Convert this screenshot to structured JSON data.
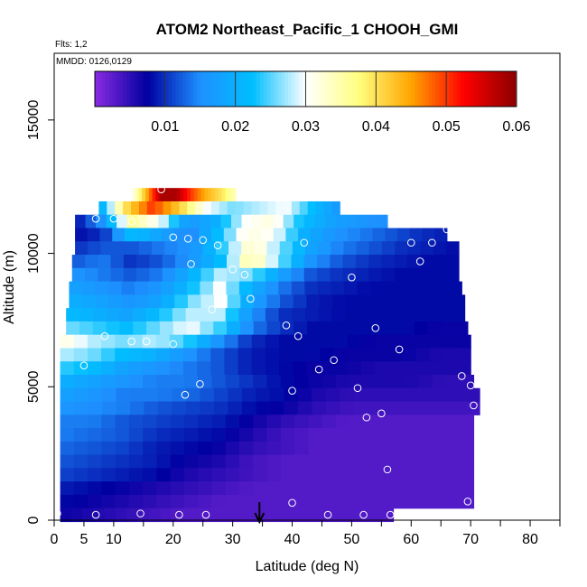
{
  "chart_data": {
    "type": "heatmap",
    "title": "ATOM2 Northeast_Pacific_1 CHOOH_GMI",
    "subtitle_flights": "Flts: 1,2",
    "subtitle_dates": "MMDD: 0126,0129",
    "xlabel": "Latitude (deg N)",
    "ylabel": "Altitude (m)",
    "xlim": [
      0,
      85
    ],
    "ylim": [
      0,
      17500
    ],
    "x_ticks": [
      0,
      5,
      10,
      20,
      30,
      40,
      50,
      60,
      70,
      80
    ],
    "x_tick_labels": [
      "0",
      "5",
      "10",
      "20",
      "30",
      "40",
      "50",
      "60",
      "70",
      "80"
    ],
    "x_minor_ticks": [
      15,
      25,
      35,
      45,
      55,
      65,
      75,
      85
    ],
    "y_ticks": [
      0,
      5000,
      10000,
      15000
    ],
    "y_tick_labels": [
      "0",
      "5000",
      "10000",
      "15000"
    ],
    "colorbar": {
      "min": 0.0,
      "max": 0.06,
      "ticks": [
        0.01,
        0.02,
        0.03,
        0.04,
        0.05,
        0.06
      ],
      "tick_labels": [
        "0.01",
        "0.02",
        "0.03",
        "0.04",
        "0.05",
        "0.06"
      ],
      "colors": [
        "#8a2be2",
        "#0000a0",
        "#1e90ff",
        "#00bfff",
        "#ffffff",
        "#ffff80",
        "#ffa500",
        "#ff0000",
        "#8b0000"
      ]
    },
    "field_rows": [
      {
        "alt": 12200,
        "lat_min": 13.0,
        "lat_max": 30.5,
        "values": [
          0.03,
          0.044,
          0.058,
          0.058,
          0.05,
          0.044,
          0.04,
          0.034
        ]
      },
      {
        "alt": 11700,
        "lat_min": 7.5,
        "lat_max": 48.0,
        "values": [
          0.018,
          0.04,
          0.05,
          0.042,
          0.03,
          0.026,
          0.028,
          0.03,
          0.022,
          0.016
        ]
      },
      {
        "alt": 11200,
        "lat_min": 3.5,
        "lat_max": 56.0,
        "values": [
          0.008,
          0.016,
          0.036,
          0.03,
          0.016,
          0.02,
          0.03,
          0.032,
          0.022,
          0.018,
          0.016,
          0.015
        ]
      },
      {
        "alt": 10700,
        "lat_min": 3.5,
        "lat_max": 66.0,
        "values": [
          0.008,
          0.01,
          0.022,
          0.018,
          0.014,
          0.022,
          0.032,
          0.03,
          0.02,
          0.016,
          0.014,
          0.012,
          0.01,
          0.009
        ]
      },
      {
        "alt": 10200,
        "lat_min": 3.5,
        "lat_max": 68.0,
        "values": [
          0.01,
          0.012,
          0.012,
          0.014,
          0.016,
          0.024,
          0.034,
          0.026,
          0.018,
          0.014,
          0.012,
          0.01,
          0.009,
          0.008
        ]
      },
      {
        "alt": 9700,
        "lat_min": 3.0,
        "lat_max": 68.0,
        "values": [
          0.012,
          0.014,
          0.01,
          0.012,
          0.016,
          0.022,
          0.036,
          0.026,
          0.016,
          0.012,
          0.01,
          0.009,
          0.008,
          0.008
        ]
      },
      {
        "alt": 9200,
        "lat_min": 3.0,
        "lat_max": 68.0,
        "values": [
          0.016,
          0.014,
          0.012,
          0.014,
          0.02,
          0.028,
          0.026,
          0.018,
          0.012,
          0.01,
          0.009,
          0.008,
          0.008,
          0.008
        ]
      },
      {
        "alt": 8700,
        "lat_min": 2.5,
        "lat_max": 68.5,
        "values": [
          0.018,
          0.016,
          0.014,
          0.016,
          0.022,
          0.03,
          0.02,
          0.014,
          0.01,
          0.009,
          0.008,
          0.008,
          0.008,
          0.008
        ]
      },
      {
        "alt": 8200,
        "lat_min": 2.5,
        "lat_max": 69.0,
        "values": [
          0.02,
          0.018,
          0.016,
          0.018,
          0.026,
          0.03,
          0.018,
          0.012,
          0.009,
          0.008,
          0.008,
          0.008,
          0.008,
          0.008
        ]
      },
      {
        "alt": 7700,
        "lat_min": 2.0,
        "lat_max": 69.0,
        "values": [
          0.022,
          0.02,
          0.018,
          0.022,
          0.028,
          0.028,
          0.016,
          0.01,
          0.009,
          0.008,
          0.008,
          0.008,
          0.008,
          0.008
        ]
      },
      {
        "alt": 7200,
        "lat_min": 2.0,
        "lat_max": 69.5,
        "values": [
          0.026,
          0.024,
          0.022,
          0.026,
          0.03,
          0.024,
          0.014,
          0.01,
          0.008,
          0.008,
          0.008,
          0.008,
          0.007,
          0.007
        ]
      },
      {
        "alt": 6700,
        "lat_min": 1.0,
        "lat_max": 70.0,
        "values": [
          0.032,
          0.028,
          0.026,
          0.028,
          0.024,
          0.016,
          0.01,
          0.008,
          0.008,
          0.008,
          0.007,
          0.007,
          0.007,
          0.007
        ]
      },
      {
        "alt": 6200,
        "lat_min": 1.0,
        "lat_max": 70.0,
        "values": [
          0.028,
          0.026,
          0.022,
          0.02,
          0.016,
          0.012,
          0.009,
          0.008,
          0.008,
          0.007,
          0.007,
          0.007,
          0.006,
          0.006
        ]
      },
      {
        "alt": 5700,
        "lat_min": 1.0,
        "lat_max": 70.0,
        "values": [
          0.024,
          0.022,
          0.018,
          0.016,
          0.014,
          0.012,
          0.009,
          0.008,
          0.007,
          0.007,
          0.006,
          0.006,
          0.006,
          0.006
        ]
      },
      {
        "alt": 5200,
        "lat_min": 1.0,
        "lat_max": 70.5,
        "values": [
          0.02,
          0.018,
          0.016,
          0.014,
          0.014,
          0.012,
          0.01,
          0.008,
          0.007,
          0.006,
          0.006,
          0.006,
          0.005,
          0.005
        ]
      },
      {
        "alt": 4700,
        "lat_min": 1.0,
        "lat_max": 71.5,
        "values": [
          0.018,
          0.016,
          0.014,
          0.014,
          0.013,
          0.011,
          0.009,
          0.008,
          0.006,
          0.005,
          0.005,
          0.005,
          0.005,
          0.005
        ]
      },
      {
        "alt": 4200,
        "lat_min": 1.0,
        "lat_max": 71.5,
        "values": [
          0.016,
          0.015,
          0.014,
          0.012,
          0.011,
          0.01,
          0.008,
          0.007,
          0.005,
          0.004,
          0.004,
          0.004,
          0.004,
          0.004
        ]
      },
      {
        "alt": 3700,
        "lat_min": 1.0,
        "lat_max": 70.5,
        "values": [
          0.014,
          0.014,
          0.012,
          0.011,
          0.01,
          0.009,
          0.007,
          0.005,
          0.004,
          0.003,
          0.003,
          0.003,
          0.003,
          0.003
        ]
      },
      {
        "alt": 3200,
        "lat_min": 1.0,
        "lat_max": 70.5,
        "values": [
          0.014,
          0.013,
          0.012,
          0.01,
          0.009,
          0.008,
          0.006,
          0.004,
          0.003,
          0.003,
          0.003,
          0.003,
          0.003,
          0.003
        ]
      },
      {
        "alt": 2700,
        "lat_min": 1.0,
        "lat_max": 70.5,
        "values": [
          0.013,
          0.012,
          0.011,
          0.009,
          0.008,
          0.007,
          0.005,
          0.004,
          0.003,
          0.003,
          0.003,
          0.003,
          0.003,
          0.003
        ]
      },
      {
        "alt": 2200,
        "lat_min": 1.0,
        "lat_max": 70.5,
        "values": [
          0.012,
          0.011,
          0.01,
          0.009,
          0.007,
          0.006,
          0.004,
          0.003,
          0.003,
          0.003,
          0.003,
          0.003,
          0.003,
          0.003
        ]
      },
      {
        "alt": 1700,
        "lat_min": 1.0,
        "lat_max": 70.5,
        "values": [
          0.011,
          0.01,
          0.009,
          0.008,
          0.006,
          0.005,
          0.004,
          0.003,
          0.003,
          0.003,
          0.003,
          0.003,
          0.003,
          0.003
        ]
      },
      {
        "alt": 1200,
        "lat_min": 1.0,
        "lat_max": 70.5,
        "values": [
          0.009,
          0.008,
          0.007,
          0.006,
          0.005,
          0.004,
          0.003,
          0.003,
          0.003,
          0.003,
          0.003,
          0.003,
          0.003,
          0.003
        ]
      },
      {
        "alt": 700,
        "lat_min": 1.0,
        "lat_max": 70.5,
        "values": [
          0.008,
          0.007,
          0.006,
          0.005,
          0.004,
          0.003,
          0.003,
          0.003,
          0.003,
          0.003,
          0.003,
          0.003,
          0.003,
          0.003
        ]
      },
      {
        "alt": 200,
        "lat_min": 1.0,
        "lat_max": 57.0,
        "values": [
          0.007,
          0.006,
          0.005,
          0.004,
          0.003,
          0.003,
          0.003,
          0.003,
          0.003,
          0.003,
          0.003,
          0.003
        ]
      }
    ],
    "observation_points": [
      {
        "x": 2.0,
        "y": 11200
      },
      {
        "x": 2.5,
        "y": 11300
      },
      {
        "x": 7.0,
        "y": 11300
      },
      {
        "x": 10.0,
        "y": 11300
      },
      {
        "x": 13.0,
        "y": 11200
      },
      {
        "x": 16.0,
        "y": 11200
      },
      {
        "x": 18.0,
        "y": 12400
      },
      {
        "x": 20.0,
        "y": 10600
      },
      {
        "x": 22.5,
        "y": 10550
      },
      {
        "x": 25.0,
        "y": 10500
      },
      {
        "x": 27.5,
        "y": 10300
      },
      {
        "x": 23.0,
        "y": 9600
      },
      {
        "x": 30.0,
        "y": 9400
      },
      {
        "x": 32.0,
        "y": 9200
      },
      {
        "x": 42.0,
        "y": 10400
      },
      {
        "x": 50.0,
        "y": 9100
      },
      {
        "x": 60.0,
        "y": 10400
      },
      {
        "x": 61.5,
        "y": 9700
      },
      {
        "x": 63.5,
        "y": 10400
      },
      {
        "x": 66.0,
        "y": 10900
      },
      {
        "x": 26.5,
        "y": 7900
      },
      {
        "x": 33.0,
        "y": 8300
      },
      {
        "x": 39.0,
        "y": 7300
      },
      {
        "x": 41.0,
        "y": 6900
      },
      {
        "x": 54.0,
        "y": 7200
      },
      {
        "x": 58.0,
        "y": 6400
      },
      {
        "x": 8.5,
        "y": 6900
      },
      {
        "x": 13.0,
        "y": 6700
      },
      {
        "x": 15.5,
        "y": 6700
      },
      {
        "x": 20.0,
        "y": 6600
      },
      {
        "x": 5.0,
        "y": 5800
      },
      {
        "x": 44.5,
        "y": 5650
      },
      {
        "x": 47.0,
        "y": 6000
      },
      {
        "x": 22.0,
        "y": 4700
      },
      {
        "x": 24.5,
        "y": 5100
      },
      {
        "x": 40.0,
        "y": 4850
      },
      {
        "x": 51.0,
        "y": 4950
      },
      {
        "x": 68.5,
        "y": 5400
      },
      {
        "x": 70.0,
        "y": 5050
      },
      {
        "x": 70.5,
        "y": 4300
      },
      {
        "x": 52.5,
        "y": 3850
      },
      {
        "x": 55.0,
        "y": 4000
      },
      {
        "x": 56.0,
        "y": 1900
      },
      {
        "x": 40.0,
        "y": 650
      },
      {
        "x": 69.5,
        "y": 700
      },
      {
        "x": 0.5,
        "y": 250
      },
      {
        "x": 7.0,
        "y": 200
      },
      {
        "x": 14.5,
        "y": 250
      },
      {
        "x": 21.0,
        "y": 200
      },
      {
        "x": 25.5,
        "y": 200
      },
      {
        "x": 46.0,
        "y": 200
      },
      {
        "x": 52.0,
        "y": 200
      },
      {
        "x": 56.5,
        "y": 200
      }
    ],
    "arrow_latitude": 34.5
  }
}
